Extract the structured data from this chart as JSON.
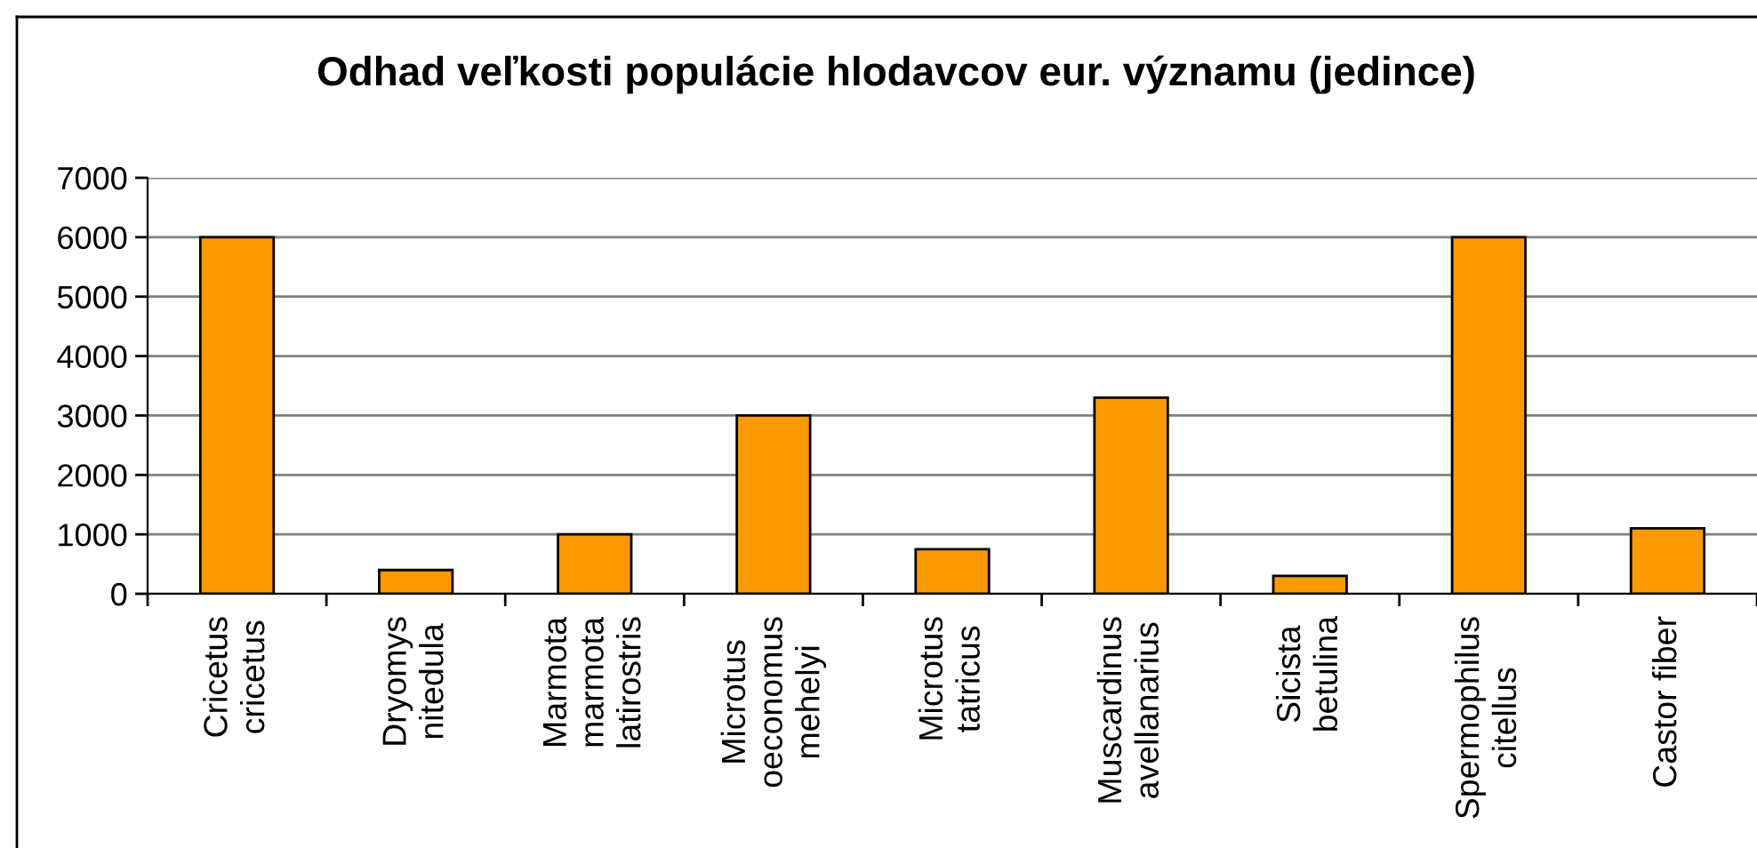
{
  "chart_data": {
    "type": "bar",
    "title": "Odhad veľkosti populácie hlodavcov eur. významu (jedince)",
    "categories": [
      "Cricetus\ncricetus",
      "Dryomys\nnitedula",
      "Marmota\nmarmota\nlatirostris",
      "Microtus\noeconomus\nmehelyi",
      "Microtus\ntatricus",
      "Muscardinus\navellanarius",
      "Sicista\nbetulina",
      "Spermophilus\ncitellus",
      "Castor fiber"
    ],
    "values": [
      6000,
      400,
      1000,
      3000,
      750,
      3300,
      300,
      6000,
      1100
    ],
    "color": "#ff9900",
    "ylim": [
      0,
      7000
    ],
    "yticks": [
      0,
      1000,
      2000,
      3000,
      4000,
      5000,
      6000,
      7000
    ],
    "grid": "y"
  }
}
